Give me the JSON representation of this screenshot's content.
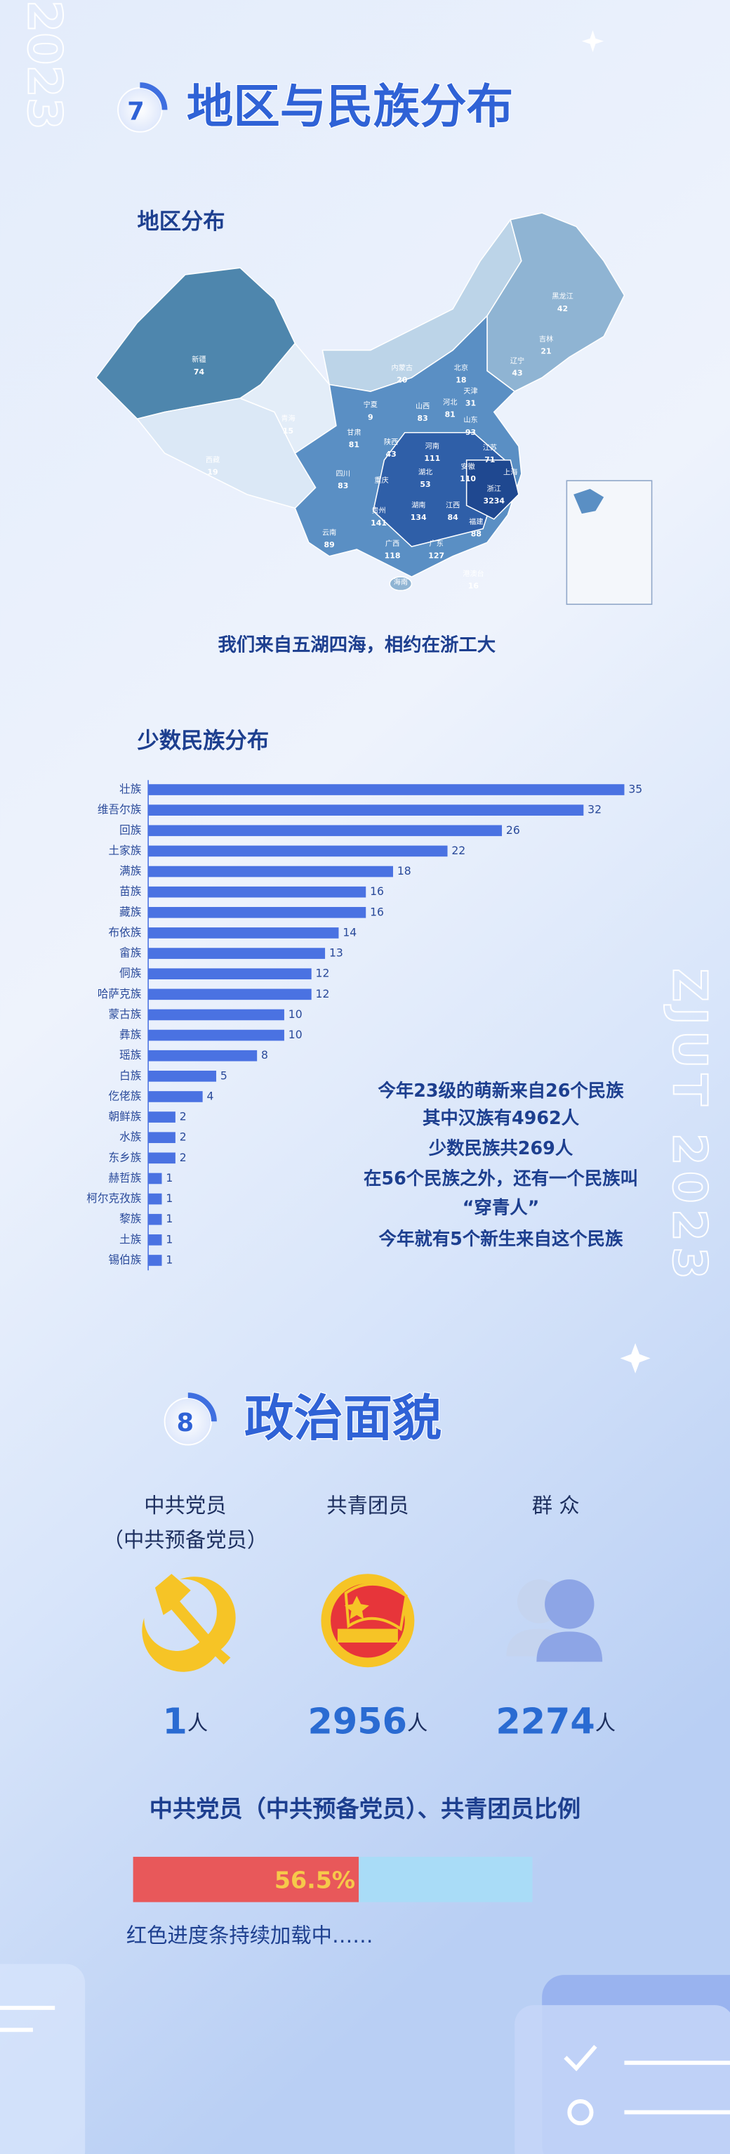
{
  "deco": {
    "year": "2023",
    "side": "ZJUT 2023"
  },
  "section7": {
    "number": "7",
    "title": "地区与民族分布"
  },
  "map": {
    "title": "地区分布",
    "regions": [
      {
        "name": "新疆",
        "value": 74
      },
      {
        "name": "西藏",
        "value": 19
      },
      {
        "name": "青海",
        "value": 15
      },
      {
        "name": "甘肃",
        "value": 81
      },
      {
        "name": "宁夏",
        "value": 9
      },
      {
        "name": "内蒙古",
        "value": 20
      },
      {
        "name": "黑龙江",
        "value": 42
      },
      {
        "name": "吉林",
        "value": 21
      },
      {
        "name": "辽宁",
        "value": 43
      },
      {
        "name": "北京",
        "value": 18
      },
      {
        "name": "天津",
        "value": 31
      },
      {
        "name": "河北",
        "value": 81
      },
      {
        "name": "山西",
        "value": 83
      },
      {
        "name": "山东",
        "value": 93
      },
      {
        "name": "陕西",
        "value": 43
      },
      {
        "name": "河南",
        "value": 111
      },
      {
        "name": "江苏",
        "value": 71
      },
      {
        "name": "安徽",
        "value": 110
      },
      {
        "name": "湖北",
        "value": 53
      },
      {
        "name": "四川",
        "value": 83
      },
      {
        "name": "重庆",
        "value": null
      },
      {
        "name": "浙江",
        "value": 3234
      },
      {
        "name": "上海",
        "value": null
      },
      {
        "name": "贵州",
        "value": 141
      },
      {
        "name": "湖南",
        "value": 134
      },
      {
        "name": "江西",
        "value": 84
      },
      {
        "name": "福建",
        "value": 88
      },
      {
        "name": "云南",
        "value": 89
      },
      {
        "name": "广西",
        "value": 118
      },
      {
        "name": "广东",
        "value": 127
      },
      {
        "name": "海南",
        "value": null
      },
      {
        "name": "港澳台",
        "value": 16
      }
    ],
    "caption": "我们来自五湖四海，相约在浙工大"
  },
  "chart_data": {
    "type": "bar",
    "orientation": "horizontal",
    "title": "少数民族分布",
    "categories": [
      "壮族",
      "维吾尔族",
      "回族",
      "土家族",
      "满族",
      "苗族",
      "藏族",
      "布依族",
      "畲族",
      "侗族",
      "哈萨克族",
      "蒙古族",
      "彝族",
      "瑶族",
      "白族",
      "仡佬族",
      "朝鲜族",
      "水族",
      "东乡族",
      "赫哲族",
      "柯尔克孜族",
      "黎族",
      "土族",
      "锡伯族"
    ],
    "values": [
      35,
      32,
      26,
      22,
      18,
      16,
      16,
      14,
      13,
      12,
      12,
      10,
      10,
      8,
      5,
      4,
      2,
      2,
      2,
      1,
      1,
      1,
      1,
      1
    ],
    "color": "#4a72e2"
  },
  "notes": [
    "今年23级的萌新来自26个民族",
    "其中汉族有4962人",
    "少数民族共269人",
    "在56个民族之外，还有一个民族叫",
    "“穿青人”",
    "今年就有5个新生来自这个民族"
  ],
  "section8": {
    "number": "8",
    "title": "政治面貌"
  },
  "groups": [
    {
      "label": [
        "中共党员",
        "（中共预备党员）"
      ],
      "value": 1,
      "unit": "人"
    },
    {
      "label": [
        "共青团员"
      ],
      "value": 2956,
      "unit": "人"
    },
    {
      "label": [
        "群 众"
      ],
      "value": 2274,
      "unit": "人"
    }
  ],
  "ratio": {
    "title": "中共党员（中共预备党员）、共青团员比例",
    "value": 56.5,
    "value_label": "56.5%",
    "note": "红色进度条持续加载中……"
  }
}
